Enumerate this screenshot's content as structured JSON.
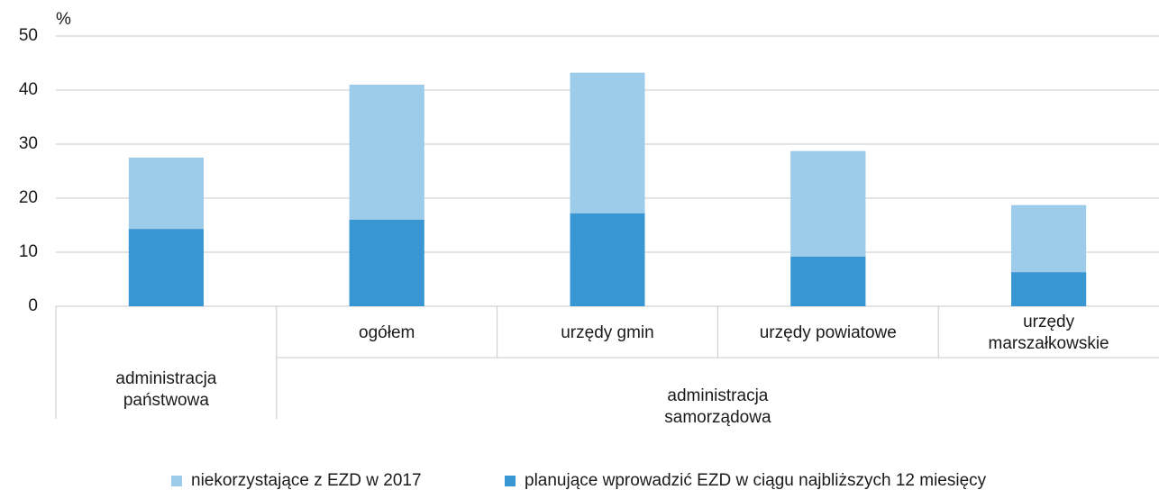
{
  "chart_data": {
    "type": "stacked_bar",
    "y_label": "%",
    "categories": [
      "administracja państwowa",
      "ogółem",
      "urzędy gmin",
      "urzędy powiatowe",
      "urzędy marszałkowskie"
    ],
    "groups": [
      {
        "label": "administracja samorządowa",
        "from": 1,
        "to": 4
      }
    ],
    "series": [
      {
        "name": "niekorzystające z EZD w 2017",
        "color": "#9dcbea",
        "values": [
          13.2,
          25,
          26,
          19.5,
          12.4
        ]
      },
      {
        "name": "planujące wprowadzić EZD w ciągu najbliższych 12 miesięcy",
        "color": "#3896d3",
        "values": [
          14.3,
          16,
          17.2,
          9.2,
          6.3
        ]
      }
    ],
    "stack_order": [
      1,
      0
    ],
    "ylim": [
      0,
      50
    ],
    "yticks": [
      0,
      10,
      20,
      30,
      40,
      50
    ],
    "grid": true,
    "legend": "bottom"
  }
}
